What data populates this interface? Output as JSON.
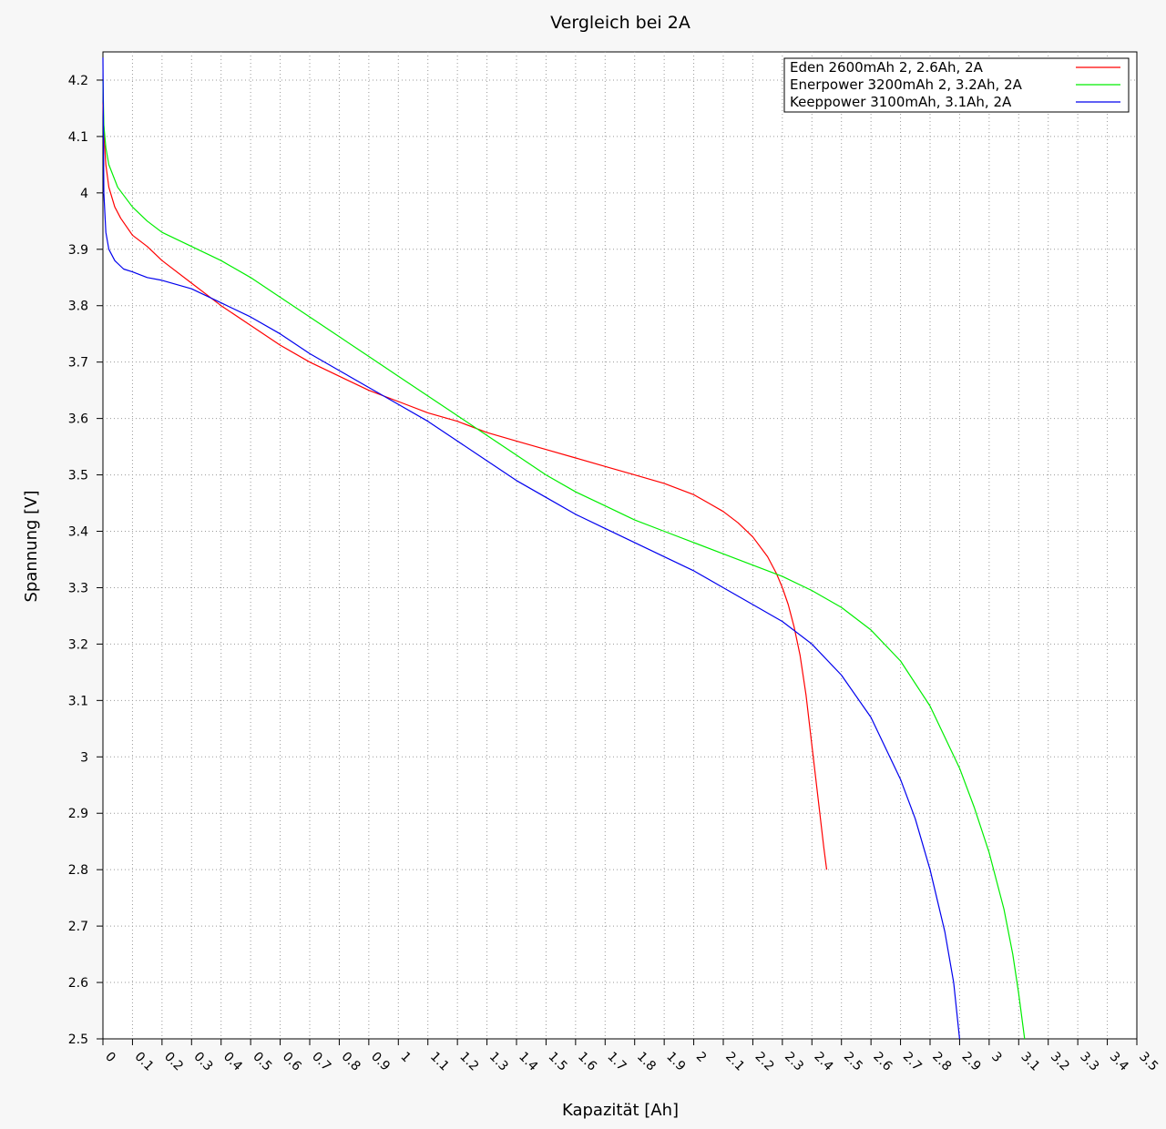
{
  "chart_data": {
    "type": "line",
    "title": "Vergleich bei 2A",
    "xlabel": "Kapazität [Ah]",
    "ylabel": "Spannung [V]",
    "xlim": [
      0,
      3.5
    ],
    "ylim": [
      2.5,
      4.25
    ],
    "grid": true,
    "legend_position": "top-right",
    "x_ticks": [
      0,
      0.1,
      0.2,
      0.3,
      0.4,
      0.5,
      0.6,
      0.7,
      0.8,
      0.9,
      1,
      1.1,
      1.2,
      1.3,
      1.4,
      1.5,
      1.6,
      1.7,
      1.8,
      1.9,
      2,
      2.1,
      2.2,
      2.3,
      2.4,
      2.5,
      2.6,
      2.7,
      2.8,
      2.9,
      3,
      3.1,
      3.2,
      3.3,
      3.4,
      3.5
    ],
    "x_tick_labels": [
      "0",
      "0.1",
      "0.2",
      "0.3",
      "0.4",
      "0.5",
      "0.6",
      "0.7",
      "0.8",
      "0.9",
      "1",
      "1.1",
      "1.2",
      "1.3",
      "1.4",
      "1.5",
      "1.6",
      "1.7",
      "1.8",
      "1.9",
      "2",
      "2.1",
      "2.2",
      "2.3",
      "2.4",
      "2.5",
      "2.6",
      "2.7",
      "2.8",
      "2.9",
      "3",
      "3.1",
      "3.2",
      "3.3",
      "3.4",
      "3.5"
    ],
    "y_ticks": [
      2.5,
      2.6,
      2.7,
      2.8,
      2.9,
      3.0,
      3.1,
      3.2,
      3.3,
      3.4,
      3.5,
      3.6,
      3.7,
      3.8,
      3.9,
      4.0,
      4.1,
      4.2
    ],
    "y_tick_labels": [
      "2.5",
      "2.6",
      "2.7",
      "2.8",
      "2.9",
      "3",
      "3.1",
      "3.2",
      "3.3",
      "3.4",
      "3.5",
      "3.6",
      "3.7",
      "3.8",
      "3.9",
      "4",
      "4.1",
      "4.2"
    ],
    "series": [
      {
        "name": "Eden 2600mAh 2, 2.6Ah, 2A",
        "color": "#ff0000",
        "x": [
          0,
          0.005,
          0.01,
          0.02,
          0.04,
          0.06,
          0.1,
          0.15,
          0.2,
          0.3,
          0.4,
          0.5,
          0.6,
          0.7,
          0.8,
          0.9,
          1.0,
          1.1,
          1.2,
          1.3,
          1.4,
          1.5,
          1.6,
          1.7,
          1.8,
          1.9,
          2.0,
          2.05,
          2.1,
          2.15,
          2.2,
          2.25,
          2.28,
          2.3,
          2.32,
          2.34,
          2.36,
          2.38,
          2.4,
          2.42,
          2.44,
          2.45
        ],
        "y": [
          4.16,
          4.09,
          4.05,
          4.01,
          3.975,
          3.955,
          3.925,
          3.905,
          3.88,
          3.84,
          3.8,
          3.765,
          3.73,
          3.7,
          3.675,
          3.65,
          3.63,
          3.61,
          3.595,
          3.575,
          3.56,
          3.545,
          3.53,
          3.515,
          3.5,
          3.485,
          3.465,
          3.45,
          3.435,
          3.415,
          3.39,
          3.355,
          3.325,
          3.3,
          3.27,
          3.23,
          3.18,
          3.11,
          3.02,
          2.93,
          2.84,
          2.8
        ]
      },
      {
        "name": "Enerpower 3200mAh 2, 3.2Ah, 2A",
        "color": "#00ee00",
        "x": [
          0,
          0.003,
          0.01,
          0.02,
          0.05,
          0.1,
          0.15,
          0.2,
          0.3,
          0.4,
          0.5,
          0.6,
          0.7,
          0.8,
          0.9,
          1.0,
          1.1,
          1.2,
          1.3,
          1.4,
          1.5,
          1.6,
          1.7,
          1.8,
          1.9,
          2.0,
          2.1,
          2.2,
          2.3,
          2.4,
          2.5,
          2.6,
          2.7,
          2.8,
          2.9,
          2.95,
          3.0,
          3.05,
          3.08,
          3.1,
          3.12
        ],
        "y": [
          4.2,
          4.12,
          4.08,
          4.05,
          4.01,
          3.975,
          3.95,
          3.93,
          3.905,
          3.88,
          3.85,
          3.815,
          3.78,
          3.745,
          3.71,
          3.675,
          3.64,
          3.605,
          3.57,
          3.535,
          3.5,
          3.47,
          3.445,
          3.42,
          3.4,
          3.38,
          3.36,
          3.34,
          3.32,
          3.295,
          3.265,
          3.225,
          3.17,
          3.09,
          2.98,
          2.91,
          2.83,
          2.73,
          2.65,
          2.58,
          2.5
        ]
      },
      {
        "name": "Keeppower 3100mAh, 3.1Ah, 2A",
        "color": "#0000ee",
        "x": [
          0,
          0.003,
          0.01,
          0.02,
          0.04,
          0.07,
          0.1,
          0.15,
          0.2,
          0.3,
          0.4,
          0.5,
          0.6,
          0.7,
          0.8,
          0.9,
          1.0,
          1.1,
          1.2,
          1.3,
          1.4,
          1.5,
          1.6,
          1.7,
          1.8,
          1.9,
          2.0,
          2.1,
          2.2,
          2.3,
          2.4,
          2.5,
          2.6,
          2.7,
          2.75,
          2.8,
          2.85,
          2.88,
          2.9
        ],
        "y": [
          4.24,
          4.0,
          3.93,
          3.9,
          3.88,
          3.865,
          3.86,
          3.85,
          3.845,
          3.83,
          3.805,
          3.78,
          3.75,
          3.715,
          3.685,
          3.655,
          3.625,
          3.595,
          3.56,
          3.525,
          3.49,
          3.46,
          3.43,
          3.405,
          3.38,
          3.355,
          3.33,
          3.3,
          3.27,
          3.24,
          3.2,
          3.145,
          3.07,
          2.96,
          2.89,
          2.8,
          2.69,
          2.6,
          2.5
        ]
      }
    ]
  }
}
